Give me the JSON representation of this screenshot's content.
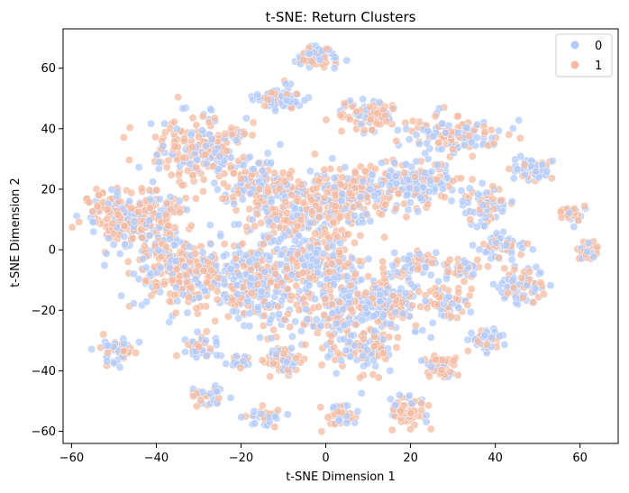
{
  "chart_data": {
    "type": "scatter",
    "title": "t-SNE: Return Clusters",
    "xlabel": "t-SNE Dimension 1",
    "ylabel": "t-SNE Dimension 2",
    "xlim": [
      -62,
      69
    ],
    "ylim": [
      -64,
      73
    ],
    "xticks": [
      -60,
      -40,
      -20,
      0,
      20,
      40,
      60
    ],
    "yticks": [
      -60,
      -40,
      -20,
      0,
      20,
      40,
      60
    ],
    "grid": false,
    "legend_placement": "top-right",
    "legend": [
      "0",
      "1"
    ],
    "colors": {
      "0": "#b3cbfa",
      "1": "#f4bba2"
    },
    "clusters": [
      {
        "cx": -2,
        "cy": 64,
        "sx": 2.5,
        "sy": 2,
        "n": 60,
        "p1": 0.5
      },
      {
        "cx": -11,
        "cy": 50,
        "sx": 3,
        "sy": 2,
        "n": 70,
        "p1": 0.4
      },
      {
        "cx": 10,
        "cy": 45,
        "sx": 4,
        "sy": 2.5,
        "n": 80,
        "p1": 0.6
      },
      {
        "cx": -29,
        "cy": 33,
        "sx": 6,
        "sy": 5,
        "n": 220,
        "p1": 0.6
      },
      {
        "cx": 30,
        "cy": 38,
        "sx": 5,
        "sy": 3,
        "n": 120,
        "p1": 0.5
      },
      {
        "cx": -50,
        "cy": 12,
        "sx": 4,
        "sy": 4,
        "n": 140,
        "p1": 0.7
      },
      {
        "cx": -41,
        "cy": 8,
        "sx": 5,
        "sy": 7,
        "n": 180,
        "p1": 0.6
      },
      {
        "cx": -15,
        "cy": 22,
        "sx": 5,
        "sy": 4,
        "n": 140,
        "p1": 0.5
      },
      {
        "cx": -10,
        "cy": 10,
        "sx": 5,
        "sy": 5,
        "n": 120,
        "p1": 0.5
      },
      {
        "cx": 4,
        "cy": 17,
        "sx": 7,
        "sy": 5,
        "n": 260,
        "p1": 0.65
      },
      {
        "cx": 21,
        "cy": 22,
        "sx": 5,
        "sy": 4,
        "n": 150,
        "p1": 0.35
      },
      {
        "cx": 38,
        "cy": 15,
        "sx": 3,
        "sy": 3,
        "n": 70,
        "p1": 0.5
      },
      {
        "cx": 48,
        "cy": 27,
        "sx": 3,
        "sy": 2,
        "n": 50,
        "p1": 0.4
      },
      {
        "cx": -33,
        "cy": -8,
        "sx": 6,
        "sy": 6,
        "n": 230,
        "p1": 0.6
      },
      {
        "cx": -16,
        "cy": -12,
        "sx": 6,
        "sy": 7,
        "n": 300,
        "p1": 0.4
      },
      {
        "cx": -2,
        "cy": -3,
        "sx": 4,
        "sy": 5,
        "n": 150,
        "p1": 0.35
      },
      {
        "cx": 7,
        "cy": -20,
        "sx": 7,
        "sy": 8,
        "n": 320,
        "p1": 0.45
      },
      {
        "cx": 21,
        "cy": -5,
        "sx": 3,
        "sy": 3,
        "n": 60,
        "p1": 0.5
      },
      {
        "cx": 28,
        "cy": -17,
        "sx": 3,
        "sy": 3,
        "n": 60,
        "p1": 0.7
      },
      {
        "cx": 33,
        "cy": -6,
        "sx": 2,
        "sy": 2,
        "n": 40,
        "p1": 0.5
      },
      {
        "cx": 42,
        "cy": 1,
        "sx": 3,
        "sy": 2,
        "n": 60,
        "p1": 0.3
      },
      {
        "cx": 46,
        "cy": -12,
        "sx": 3,
        "sy": 3,
        "n": 80,
        "p1": 0.4
      },
      {
        "cx": 58,
        "cy": 12,
        "sx": 1.5,
        "sy": 1.5,
        "n": 25,
        "p1": 0.6
      },
      {
        "cx": 62,
        "cy": 0,
        "sx": 1.5,
        "sy": 1.5,
        "n": 25,
        "p1": 0.6
      },
      {
        "cx": -49,
        "cy": -33,
        "sx": 2,
        "sy": 2,
        "n": 50,
        "p1": 0.4
      },
      {
        "cx": -30,
        "cy": -32,
        "sx": 2,
        "sy": 2,
        "n": 40,
        "p1": 0.5
      },
      {
        "cx": -10,
        "cy": -37,
        "sx": 2,
        "sy": 2,
        "n": 55,
        "p1": 0.6
      },
      {
        "cx": 9,
        "cy": -33,
        "sx": 3,
        "sy": 2,
        "n": 60,
        "p1": 0.5
      },
      {
        "cx": 27,
        "cy": -38,
        "sx": 2,
        "sy": 2,
        "n": 55,
        "p1": 0.7
      },
      {
        "cx": 38,
        "cy": -30,
        "sx": 2,
        "sy": 2,
        "n": 50,
        "p1": 0.4
      },
      {
        "cx": 19,
        "cy": -53,
        "sx": 2.5,
        "sy": 2.5,
        "n": 70,
        "p1": 0.6
      },
      {
        "cx": 3,
        "cy": -55,
        "sx": 2,
        "sy": 2,
        "n": 40,
        "p1": 0.4
      },
      {
        "cx": -14,
        "cy": -55,
        "sx": 2,
        "sy": 1.5,
        "n": 35,
        "p1": 0.5
      },
      {
        "cx": -28,
        "cy": -48,
        "sx": 2,
        "sy": 2,
        "n": 30,
        "p1": 0.5
      },
      {
        "cx": -20,
        "cy": -37,
        "sx": 1.5,
        "sy": 1.5,
        "n": 20,
        "p1": 0.4
      },
      {
        "cx": 15,
        "cy": -18,
        "sx": 2,
        "sy": 3,
        "n": 60,
        "p1": 0.3
      }
    ]
  }
}
